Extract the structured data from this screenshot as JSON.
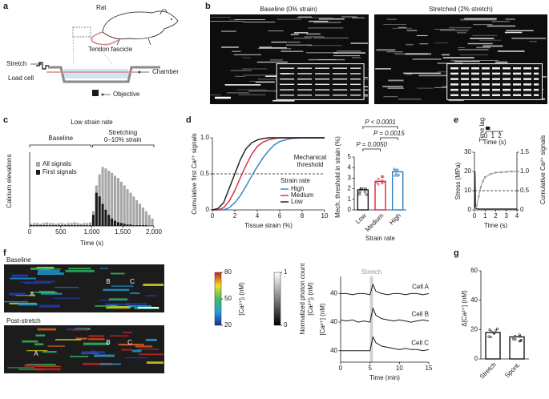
{
  "panel_labels": [
    "a",
    "b",
    "c",
    "d",
    "e",
    "f",
    "g"
  ],
  "panel_a": {
    "labels": [
      "Rat",
      "Tendon fascicle",
      "Stretch",
      "Load cell",
      "Chamber",
      "Objective"
    ]
  },
  "panel_b": {
    "titles": [
      "Baseline (0% strain)",
      "Stretched (2% stretch)"
    ]
  },
  "panel_f": {
    "titles": [
      "Baseline",
      "Post-stretch"
    ],
    "cells": [
      "A",
      "B",
      "C"
    ],
    "colorbar": {
      "label": "[Ca²⁺]ᵢ (nM)",
      "lim": [
        20,
        80
      ],
      "ticks": [
        80,
        50,
        20
      ]
    },
    "graybar": {
      "label": [
        "Normalized photon count",
        "[Ca²⁺]ᵢ (nM)"
      ],
      "lim": [
        0,
        1
      ],
      "ticks": [
        1,
        0
      ]
    }
  },
  "chart_data": [
    {
      "type": "histogram",
      "title": "Low strain rate",
      "annotations": [
        "Baseline",
        "Stretching",
        "0–10% strain"
      ],
      "xlabel": "Time (s)",
      "ylabel": "Calcium elevations",
      "bins": [
        0,
        50,
        100,
        150,
        200,
        250,
        300,
        350,
        400,
        450,
        500,
        550,
        600,
        650,
        700,
        750,
        800,
        850,
        900,
        950,
        1000,
        1050,
        1100,
        1150,
        1200,
        1250,
        1300,
        1350,
        1400,
        1450,
        1500,
        1550,
        1600,
        1650,
        1700,
        1750,
        1800,
        1850,
        1900,
        1950,
        2000
      ],
      "xlim": [
        0,
        2000
      ],
      "xticks": [
        0,
        500,
        {
          "value": 1000,
          "label": "1,000"
        },
        {
          "value": 1500,
          "label": "1,500"
        },
        {
          "value": 2000,
          "label": "2,000"
        }
      ],
      "ylim": [
        0,
        100
      ],
      "series": [
        {
          "name": "All signals",
          "color": "#a6a6a6",
          "values": [
            3,
            4,
            4,
            3,
            4,
            5,
            4,
            4,
            3,
            4,
            4,
            3,
            4,
            4,
            5,
            4,
            3,
            4,
            4,
            5,
            20,
            55,
            70,
            80,
            78,
            75,
            72,
            68,
            65,
            60,
            55,
            50,
            45,
            40,
            35,
            30,
            25,
            20,
            15,
            10
          ]
        },
        {
          "name": "First signals",
          "color": "#1a1a1a",
          "values": [
            1,
            1,
            1,
            1,
            1,
            1,
            1,
            1,
            1,
            1,
            1,
            1,
            1,
            1,
            1,
            1,
            1,
            1,
            1,
            1,
            15,
            45,
            40,
            30,
            22,
            15,
            10,
            7,
            5,
            4,
            3,
            2,
            2,
            1,
            1,
            1,
            1,
            1,
            0,
            0
          ]
        }
      ]
    },
    {
      "type": "line",
      "xlabel": "Tissue strain (%)",
      "ylabel": "Cumulative first Ca²⁺ signals",
      "x": [
        0,
        0.5,
        1,
        1.5,
        2,
        2.5,
        3,
        3.5,
        4,
        4.5,
        5,
        5.5,
        6,
        7,
        8,
        10
      ],
      "xlim": [
        0,
        10
      ],
      "xticks": [
        0,
        2,
        4,
        6,
        8,
        10
      ],
      "ylim": [
        0,
        1
      ],
      "yticks": [
        0,
        0.5,
        {
          "value": 1,
          "label": "1.0"
        }
      ],
      "threshold": {
        "value": 0.5,
        "label": [
          "Mechanical",
          "threshold"
        ]
      },
      "legend_title": "Strain rate",
      "series": [
        {
          "name": "High",
          "color": "#2a7fc1",
          "values": [
            0,
            0,
            0,
            0.03,
            0.1,
            0.2,
            0.33,
            0.47,
            0.6,
            0.72,
            0.82,
            0.9,
            0.95,
            0.99,
            1,
            1
          ]
        },
        {
          "name": "Medium",
          "color": "#d7263d",
          "values": [
            0,
            0,
            0.03,
            0.12,
            0.27,
            0.45,
            0.62,
            0.77,
            0.88,
            0.94,
            0.97,
            0.99,
            1,
            1,
            1,
            1
          ]
        },
        {
          "name": "Low",
          "color": "#1a1a1a",
          "values": [
            0,
            0.02,
            0.1,
            0.3,
            0.5,
            0.7,
            0.85,
            0.93,
            0.97,
            0.99,
            1,
            1,
            1,
            1,
            1,
            1
          ]
        }
      ]
    },
    {
      "type": "bar",
      "xlabel": "Strain rate",
      "ylabel": "Mech. threshold in strain (%)",
      "categories": [
        "Low",
        "Medium",
        "High"
      ],
      "values": [
        1.9,
        2.7,
        3.6
      ],
      "colors": [
        "#1a1a1a",
        "#d7263d",
        "#2a7fc1"
      ],
      "ylim": [
        0,
        5
      ],
      "yticks": [
        0,
        1,
        2,
        3,
        4,
        5
      ],
      "annotations": [
        "P < 0.0001",
        "P = 0.0015",
        "P = 0.0050"
      ]
    },
    {
      "type": "line",
      "xlabel": "Time (s)",
      "ylabel": "Stress (MPa)",
      "y2label": "Cumulative Ca²⁺ signals",
      "xlim": [
        0,
        4
      ],
      "xticks": [
        0,
        1,
        2,
        3,
        4
      ],
      "ylim": [
        0,
        30
      ],
      "yticks": [
        0,
        10,
        20,
        30
      ],
      "y2lim": [
        0,
        1.5
      ],
      "y2ticks": [
        0,
        0.5,
        {
          "value": 1,
          "label": "1.0"
        },
        1.5
      ],
      "threshold": {
        "value": 0.5,
        "axis": "y2"
      },
      "inset": {
        "title": "Time lag",
        "xlabel": "Time (s)",
        "xlim": [
          0,
          2.5
        ],
        "xticks": [
          0,
          1,
          2
        ],
        "values": [
          0.6
        ]
      },
      "series": [
        {
          "name": "Stress",
          "color": "#1a1a1a",
          "x": [
            0,
            0.05,
            0.1,
            0.2,
            0.5,
            1,
            2,
            3,
            4
          ],
          "values": [
            0,
            20,
            1,
            0.6,
            0.5,
            0.5,
            0.5,
            0.5,
            0.5
          ]
        },
        {
          "name": "Ca²⁺",
          "color": "#9e9e9e",
          "axis": "y2",
          "x": [
            0,
            0.2,
            0.4,
            0.6,
            0.8,
            1,
            1.5,
            2,
            2.5,
            3,
            3.5,
            4
          ],
          "values": [
            0,
            0.1,
            0.35,
            0.6,
            0.75,
            0.85,
            0.93,
            0.97,
            0.98,
            0.99,
            1,
            1
          ]
        }
      ]
    },
    {
      "type": "line",
      "stacked": true,
      "xlabel": "Time (min)",
      "ylabel": "[Ca²⁺] (nM)",
      "x": [
        0,
        1,
        2,
        3,
        4,
        5,
        5.5,
        6,
        7,
        8,
        9,
        10,
        11,
        12,
        13,
        14,
        15
      ],
      "xlim": [
        0,
        15
      ],
      "xticks": [
        0,
        5,
        10,
        15
      ],
      "highlight": {
        "label": "Stretch",
        "range": [
          5,
          5.5
        ]
      },
      "series": [
        {
          "name": "Cell A",
          "color": "#1a1a1a",
          "ylim": [
            30,
            55
          ],
          "yticks": [
            40
          ],
          "values": [
            40,
            40,
            39,
            40,
            40,
            39,
            48,
            42,
            40,
            39,
            40,
            40,
            39,
            40,
            40,
            39,
            40
          ]
        },
        {
          "name": "Cell B",
          "color": "#1a1a1a",
          "ylim": [
            30,
            55
          ],
          "yticks": [
            40
          ],
          "values": [
            42,
            41,
            42,
            40,
            41,
            40,
            52,
            46,
            43,
            42,
            41,
            42,
            41,
            40,
            41,
            42,
            41
          ]
        },
        {
          "name": "Cell C",
          "color": "#1a1a1a",
          "ylim": [
            30,
            55
          ],
          "yticks": [
            40
          ],
          "values": [
            40,
            40,
            40,
            40,
            40,
            40,
            52,
            47,
            44,
            43,
            42,
            41,
            42,
            41,
            41,
            40,
            41
          ]
        }
      ]
    },
    {
      "type": "bar",
      "ylabel": "Δ[Ca²⁺] (nM)",
      "categories": [
        "Stretch",
        "Spont."
      ],
      "values": [
        18,
        15
      ],
      "colors": [
        "#1a1a1a",
        "#1a1a1a"
      ],
      "ylim": [
        0,
        60
      ],
      "yticks": [
        0,
        20,
        40,
        60
      ]
    }
  ]
}
